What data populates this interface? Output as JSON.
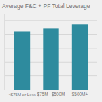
{
  "chart_data": {
    "type": "bar",
    "title": "Average F&C + PF Total Leverage",
    "categories": [
      "<$75M or Less",
      "$75M - $500M",
      "$500M+"
    ],
    "values": [
      4.2,
      4.45,
      4.7
    ],
    "color": "#2e8b9e",
    "ylim": [
      0,
      5.5
    ],
    "yticks": [
      1,
      2,
      3,
      4,
      5
    ],
    "grid": true,
    "tick_labels": "x"
  }
}
